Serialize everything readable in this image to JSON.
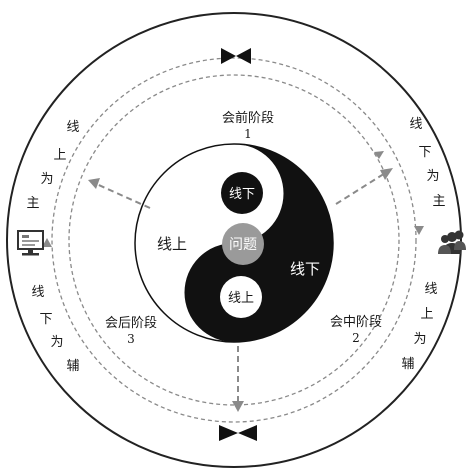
{
  "center": {
    "label": "问题"
  },
  "yinyang": {
    "white_half_label": "线上",
    "black_half_label": "线下",
    "black_dot_label": "线下",
    "white_dot_label": "线上"
  },
  "stages": {
    "pre": {
      "name": "会前阶段",
      "number": "1"
    },
    "mid": {
      "name": "会中阶段",
      "number": "2"
    },
    "post": {
      "name": "会后阶段",
      "number": "3"
    }
  },
  "ring": {
    "upper_left": [
      "线",
      "上",
      "为",
      "主"
    ],
    "lower_left": [
      "线",
      "下",
      "为",
      "辅"
    ],
    "upper_right": [
      "线",
      "下",
      "为",
      "主"
    ],
    "lower_right": [
      "线",
      "上",
      "为",
      "辅"
    ]
  },
  "icons": {
    "left": "computer-monitor-icon",
    "right": "people-group-icon",
    "top": "bowtie-divider-icon",
    "bottom": "bowtie-divider-icon"
  },
  "colors": {
    "ink": "#111111",
    "gray_center": "#9a9a9a",
    "dash": "#8a8a8a"
  }
}
